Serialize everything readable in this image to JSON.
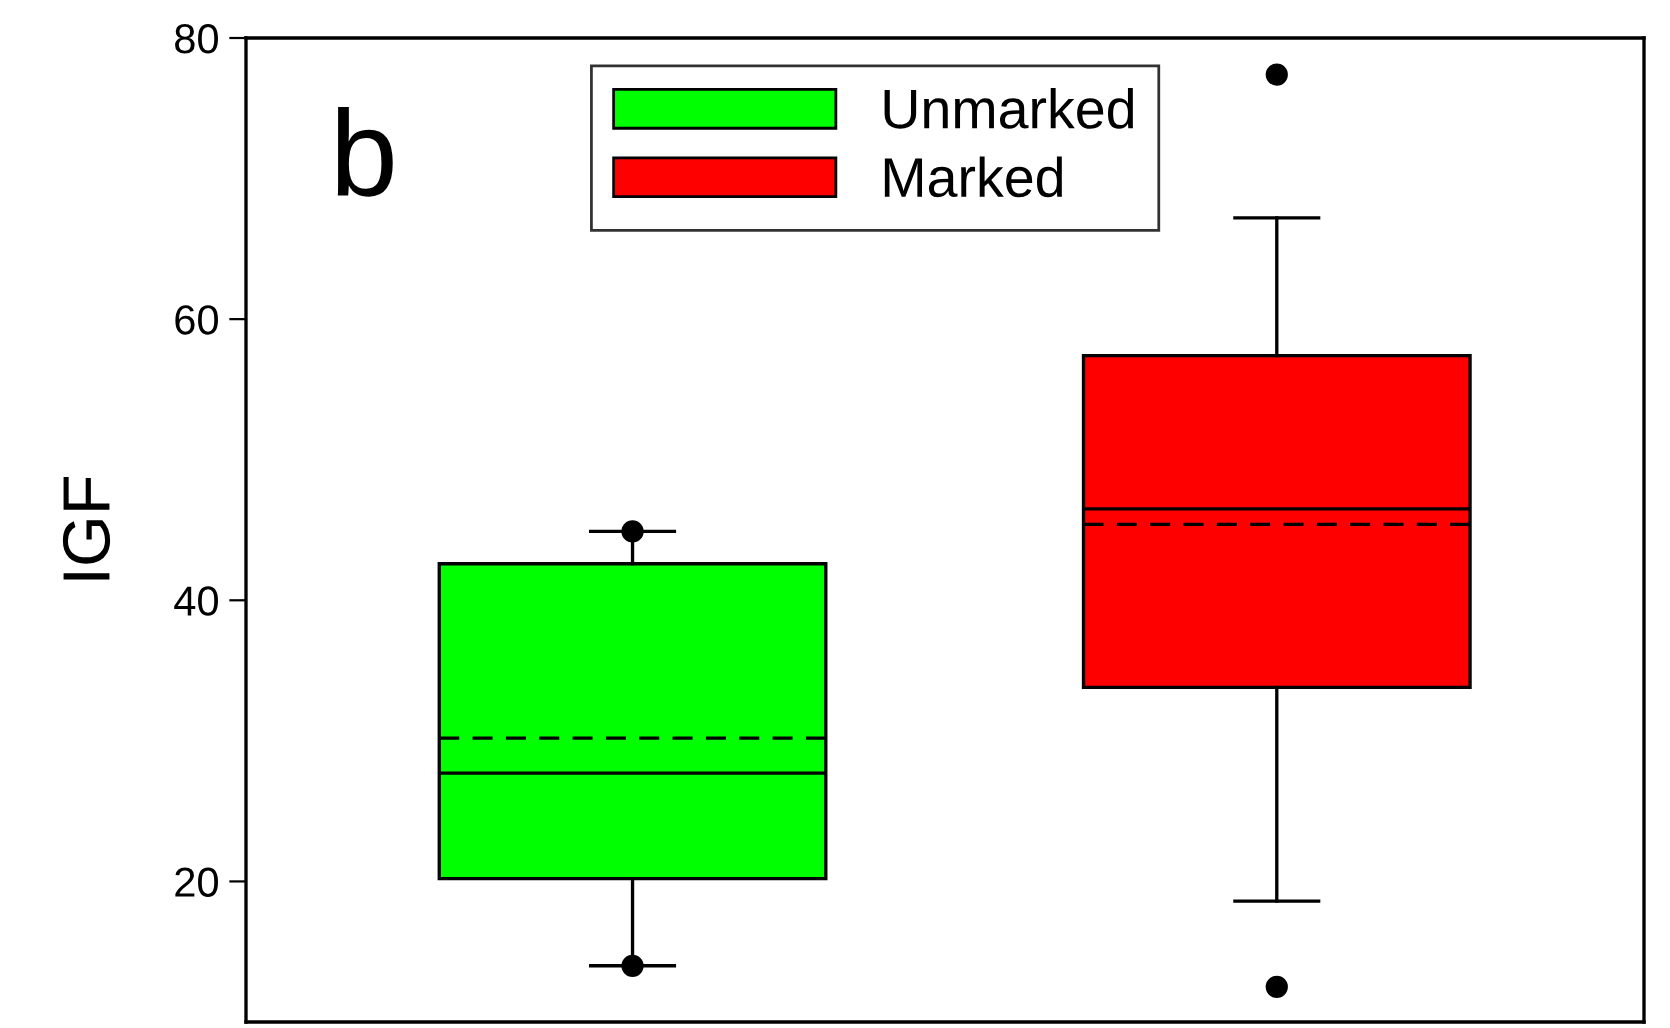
{
  "chart_data": {
    "type": "box",
    "ylabel": "IGF",
    "annotations": [
      "b"
    ],
    "categories": [
      null,
      null
    ],
    "series": [
      {
        "name": "Unmarked",
        "color": "#00ff00",
        "boxes": [
          {
            "low": 14.0,
            "q1": 20.2,
            "median": 27.7,
            "q3": 42.6,
            "high": 44.9,
            "mean": 30.2,
            "outliers": [
              44.9,
              14.0
            ]
          },
          null
        ]
      },
      {
        "name": "Marked",
        "color": "#ff0000",
        "boxes": [
          null,
          {
            "low": 18.6,
            "q1": 33.8,
            "median": 46.5,
            "q3": 57.4,
            "high": 67.2,
            "mean": 45.4,
            "outliers": [
              77.4,
              12.5
            ]
          }
        ]
      }
    ],
    "ylim": [
      10,
      80
    ],
    "yticks": [
      20,
      40,
      60,
      80
    ],
    "tick_labels": "y",
    "legend": "top",
    "grid": false
  }
}
